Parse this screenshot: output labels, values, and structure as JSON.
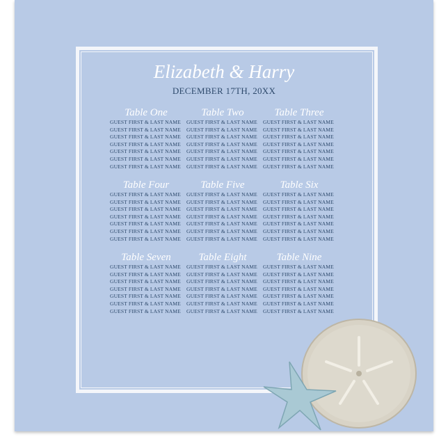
{
  "header": {
    "names": "Elizabeth & Harry",
    "date": "DECEMBER 17TH, 20XX"
  },
  "tables": [
    {
      "name": "Table One",
      "guests": [
        "GUEST FIRST & LAST NAME",
        "GUEST FIRST & LAST NAME",
        "GUEST FIRST & LAST NAME",
        "GUEST FIRST & LAST NAME",
        "GUEST FIRST & LAST NAME",
        "GUEST FIRST & LAST NAME",
        "GUEST FIRST & LAST NAME"
      ]
    },
    {
      "name": "Table Two",
      "guests": [
        "GUEST FIRST & LAST NAME",
        "GUEST FIRST & LAST NAME",
        "GUEST FIRST & LAST NAME",
        "GUEST FIRST & LAST NAME",
        "GUEST FIRST & LAST NAME",
        "GUEST FIRST & LAST NAME",
        "GUEST FIRST & LAST NAME"
      ]
    },
    {
      "name": "Table Three",
      "guests": [
        "GUEST FIRST & LAST NAME",
        "GUEST FIRST & LAST NAME",
        "GUEST FIRST & LAST NAME",
        "GUEST FIRST & LAST NAME",
        "GUEST FIRST & LAST NAME",
        "GUEST FIRST & LAST NAME",
        "GUEST FIRST & LAST NAME"
      ]
    },
    {
      "name": "Table Four",
      "guests": [
        "GUEST FIRST & LAST NAME",
        "GUEST FIRST & LAST NAME",
        "GUEST FIRST & LAST NAME",
        "GUEST FIRST & LAST NAME",
        "GUEST FIRST & LAST NAME",
        "GUEST FIRST & LAST NAME",
        "GUEST FIRST & LAST NAME"
      ]
    },
    {
      "name": "Table Five",
      "guests": [
        "GUEST FIRST & LAST NAME",
        "GUEST FIRST & LAST NAME",
        "GUEST FIRST & LAST NAME",
        "GUEST FIRST & LAST NAME",
        "GUEST FIRST & LAST NAME",
        "GUEST FIRST & LAST NAME",
        "GUEST FIRST & LAST NAME"
      ]
    },
    {
      "name": "Table Six",
      "guests": [
        "GUEST FIRST & LAST NAME",
        "GUEST FIRST & LAST NAME",
        "GUEST FIRST & LAST NAME",
        "GUEST FIRST & LAST NAME",
        "GUEST FIRST & LAST NAME",
        "GUEST FIRST & LAST NAME",
        "GUEST FIRST & LAST NAME"
      ]
    },
    {
      "name": "Table Seven",
      "guests": [
        "GUEST FIRST & LAST NAME",
        "GUEST FIRST & LAST NAME",
        "GUEST FIRST & LAST NAME",
        "GUEST FIRST & LAST NAME",
        "GUEST FIRST & LAST NAME",
        "GUEST FIRST & LAST NAME",
        "GUEST FIRST & LAST NAME"
      ]
    },
    {
      "name": "Table Eight",
      "guests": [
        "GUEST FIRST & LAST NAME",
        "GUEST FIRST & LAST NAME",
        "GUEST FIRST & LAST NAME",
        "GUEST FIRST & LAST NAME",
        "GUEST FIRST & LAST NAME",
        "GUEST FIRST & LAST NAME",
        "GUEST FIRST & LAST NAME"
      ]
    },
    {
      "name": "Table Nine",
      "guests": [
        "GUEST FIRST & LAST NAME",
        "GUEST FIRST & LAST NAME",
        "GUEST FIRST & LAST NAME",
        "GUEST FIRST & LAST NAME",
        "GUEST FIRST & LAST NAME",
        "GUEST FIRST & LAST NAME",
        "GUEST FIRST & LAST NAME"
      ]
    }
  ]
}
